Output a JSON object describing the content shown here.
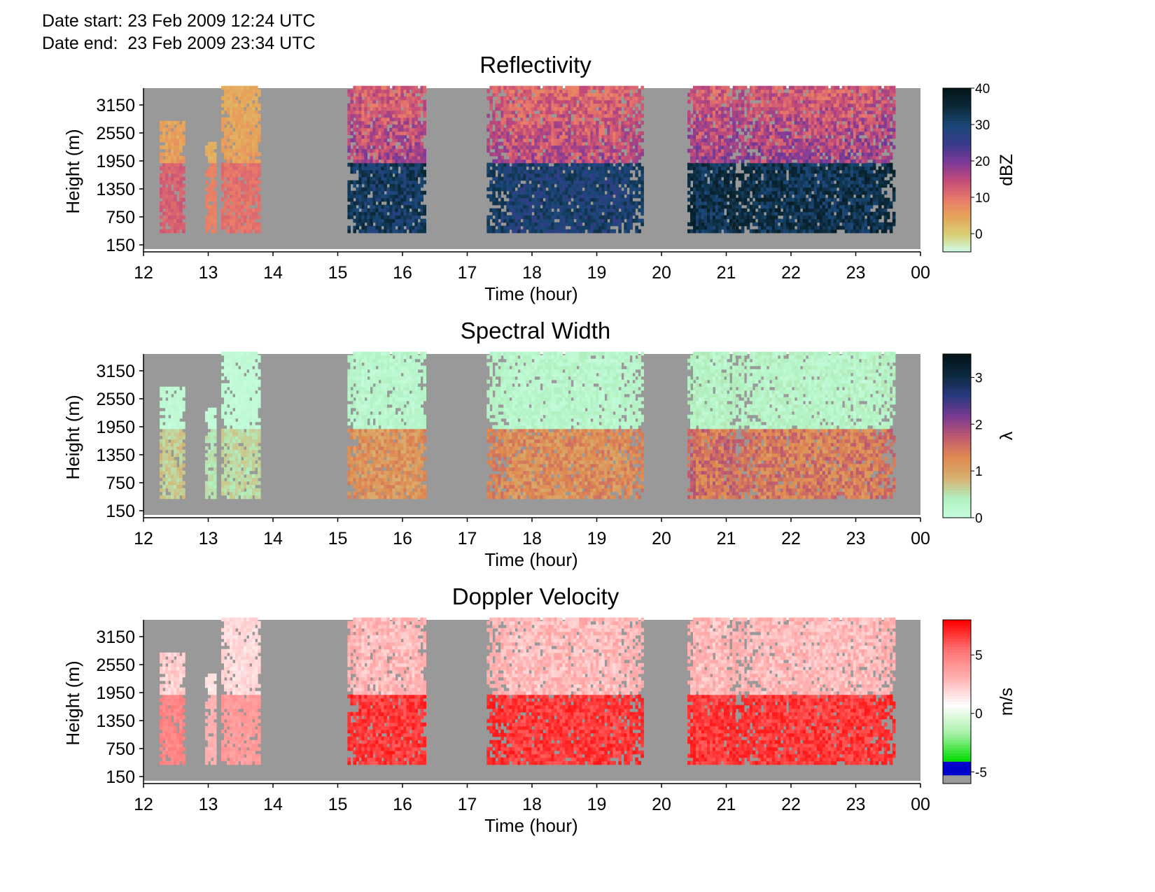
{
  "header": {
    "date_start": "Date start: 23 Feb 2009 12:24 UTC",
    "date_end": "Date end:  23 Feb 2009 23:34 UTC"
  },
  "colors": {
    "no_data": "#999999",
    "reflectivity_scale": [
      "#cffff0",
      "#d8d078",
      "#e6a45a",
      "#e8786a",
      "#c24a78",
      "#7c3a9a",
      "#3a3a8c",
      "#1a4878",
      "#0c2a3a",
      "#04161c"
    ],
    "spectral_scale": [
      "#c8ffe0",
      "#b0f0c0",
      "#d8b070",
      "#e08a50",
      "#c05a70",
      "#7a3a90",
      "#2a3a80",
      "#0c2a40",
      "#041418"
    ],
    "velocity_scale": [
      "#999999",
      "#0000cc",
      "#00dd00",
      "#a8f0a8",
      "#ffffff",
      "#ffb0b0",
      "#ff7070",
      "#ff0000"
    ]
  },
  "chart_data": [
    {
      "type": "heatmap",
      "title": "Reflectivity",
      "xlabel": "Time (hour)",
      "ylabel": "Height (m)",
      "x_ticks": [
        "12",
        "13",
        "14",
        "15",
        "16",
        "17",
        "18",
        "19",
        "20",
        "21",
        "22",
        "23",
        "00"
      ],
      "y_ticks": [
        "150",
        "750",
        "1350",
        "1950",
        "2550",
        "3150"
      ],
      "colorbar": {
        "label": "dBZ",
        "ticks": [
          "40",
          "30",
          "20",
          "10",
          "0"
        ],
        "range": [
          -5,
          40
        ]
      },
      "xlim": [
        12,
        24
      ],
      "ylim": [
        0,
        3450
      ],
      "echo_periods": [
        {
          "start": 12.25,
          "end": 12.6,
          "top": 2700,
          "base": 350,
          "peak": 14
        },
        {
          "start": 12.95,
          "end": 13.1,
          "top": 2300,
          "base": 350,
          "peak": 10
        },
        {
          "start": 13.2,
          "end": 13.8,
          "top": 3450,
          "base": 350,
          "peak": 12
        },
        {
          "start": 15.15,
          "end": 16.35,
          "top": 3450,
          "base": 350,
          "peak": 36
        },
        {
          "start": 17.3,
          "end": 19.7,
          "top": 3450,
          "base": 350,
          "peak": 34
        },
        {
          "start": 20.4,
          "end": 21.1,
          "top": 3450,
          "base": 350,
          "peak": 38
        },
        {
          "start": 21.1,
          "end": 23.6,
          "top": 3450,
          "base": 350,
          "peak": 38
        }
      ]
    },
    {
      "type": "heatmap",
      "title": "Spectral Width",
      "xlabel": "Time (hour)",
      "ylabel": "Height (m)",
      "x_ticks": [
        "12",
        "13",
        "14",
        "15",
        "16",
        "17",
        "18",
        "19",
        "20",
        "21",
        "22",
        "23",
        "00"
      ],
      "y_ticks": [
        "150",
        "750",
        "1350",
        "1950",
        "2550",
        "3150"
      ],
      "colorbar": {
        "label": "λ",
        "ticks": [
          "3",
          "2",
          "1",
          "0"
        ],
        "range": [
          0,
          3.5
        ]
      },
      "xlim": [
        12,
        24
      ],
      "ylim": [
        0,
        3450
      ],
      "echo_periods": [
        {
          "start": 12.25,
          "end": 12.6,
          "top": 2700,
          "base": 350,
          "peak": 0.8
        },
        {
          "start": 12.95,
          "end": 13.1,
          "top": 2300,
          "base": 350,
          "peak": 0.6
        },
        {
          "start": 13.2,
          "end": 13.8,
          "top": 3450,
          "base": 350,
          "peak": 0.7
        },
        {
          "start": 15.15,
          "end": 16.35,
          "top": 3450,
          "base": 350,
          "peak": 1.4
        },
        {
          "start": 17.3,
          "end": 19.7,
          "top": 3450,
          "base": 350,
          "peak": 1.5
        },
        {
          "start": 20.4,
          "end": 21.1,
          "top": 3450,
          "base": 350,
          "peak": 1.8
        },
        {
          "start": 21.1,
          "end": 23.6,
          "top": 3450,
          "base": 350,
          "peak": 1.7
        }
      ]
    },
    {
      "type": "heatmap",
      "title": "Doppler Velocity",
      "xlabel": "Time (hour)",
      "ylabel": "Height (m)",
      "x_ticks": [
        "12",
        "13",
        "14",
        "15",
        "16",
        "17",
        "18",
        "19",
        "20",
        "21",
        "22",
        "23",
        "00"
      ],
      "y_ticks": [
        "150",
        "750",
        "1350",
        "1950",
        "2550",
        "3150"
      ],
      "colorbar": {
        "label": "m/s",
        "ticks": [
          "5",
          "0",
          "-5"
        ],
        "range": [
          -6,
          8
        ]
      },
      "xlim": [
        12,
        24
      ],
      "ylim": [
        0,
        3450
      ],
      "echo_periods": [
        {
          "start": 12.25,
          "end": 12.6,
          "top": 2700,
          "base": 350,
          "peak": 5
        },
        {
          "start": 12.95,
          "end": 13.1,
          "top": 2300,
          "base": 350,
          "peak": 3
        },
        {
          "start": 13.2,
          "end": 13.8,
          "top": 3450,
          "base": 350,
          "peak": 4
        },
        {
          "start": 15.15,
          "end": 16.35,
          "top": 3450,
          "base": 350,
          "peak": 7.5
        },
        {
          "start": 17.3,
          "end": 19.7,
          "top": 3450,
          "base": 350,
          "peak": 7.5
        },
        {
          "start": 20.4,
          "end": 21.1,
          "top": 3450,
          "base": 350,
          "peak": 7.5
        },
        {
          "start": 21.1,
          "end": 23.6,
          "top": 3450,
          "base": 350,
          "peak": 7.5
        }
      ]
    }
  ]
}
